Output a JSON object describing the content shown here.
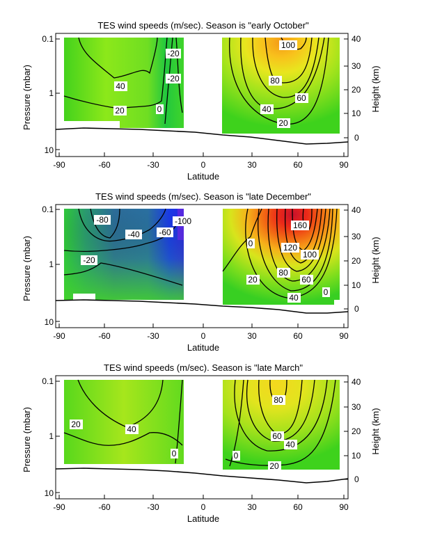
{
  "chart_data": [
    {
      "type": "heatmap",
      "title": "TES wind speeds (m/sec). Season is \"early October\"",
      "xlabel": "Latitude",
      "ylabel": "Pressure (mbar)",
      "ylabel_right": "Height (km)",
      "xlim": [
        -95,
        95
      ],
      "xticks": [
        "-90",
        "-60",
        "-30",
        "0",
        "30",
        "60",
        "90"
      ],
      "yscale": "log",
      "ylim_pressure_mbar": [
        0.1,
        12
      ],
      "yticks_left": [
        "0.1",
        "1",
        "10"
      ],
      "yticks_right": [
        "0",
        "10",
        "20",
        "30",
        "40"
      ],
      "colorscale": "blue(-100) – green(0) – yellow – orange – red – purple(160)",
      "regions": [
        {
          "lat": [
            -87,
            -17
          ],
          "p_top": 0.1,
          "p_bottom": 3.5
        },
        {
          "lat": [
            12,
            89
          ],
          "p_top": 0.1,
          "p_bottom": 5.0
        }
      ],
      "contours": [
        {
          "level": 20,
          "label": "20"
        },
        {
          "level": 40,
          "label": "40"
        },
        {
          "level": -20,
          "label": "-20"
        },
        {
          "level": -20,
          "label": "-20"
        },
        {
          "level": 0,
          "label": "0"
        },
        {
          "level": 100,
          "label": "100"
        },
        {
          "level": 80,
          "label": "80"
        },
        {
          "level": 60,
          "label": "60"
        },
        {
          "level": 40,
          "label": "40"
        },
        {
          "level": 20,
          "label": "20"
        }
      ],
      "surface_line": "surface pressure",
      "max_value": 100
    },
    {
      "type": "heatmap",
      "title": "TES wind speeds (m/sec). Season is \"late December\"",
      "xlabel": "Latitude",
      "ylabel": "Pressure (mbar)",
      "ylabel_right": "Height (km)",
      "xlim": [
        -95,
        95
      ],
      "xticks": [
        "-90",
        "-60",
        "-30",
        "0",
        "30",
        "60",
        "90"
      ],
      "yscale": "log",
      "ylim_pressure_mbar": [
        0.1,
        12
      ],
      "yticks_left": [
        "0.1",
        "1",
        "10"
      ],
      "yticks_right": [
        "0",
        "10",
        "20",
        "30",
        "40"
      ],
      "colorscale": "blue(-100) – green(0) – yellow – orange – red – purple(160)",
      "regions": [
        {
          "lat": [
            -87,
            -15
          ],
          "p_top": 0.1,
          "p_bottom": 3.5
        },
        {
          "lat": [
            13,
            89
          ],
          "p_top": 0.1,
          "p_bottom": 5.0
        }
      ],
      "contours": [
        {
          "level": -80,
          "label": "-80"
        },
        {
          "level": -40,
          "label": "-40"
        },
        {
          "level": -60,
          "label": "-60"
        },
        {
          "level": -100,
          "label": "-100"
        },
        {
          "level": -20,
          "label": "-20"
        },
        {
          "level": 0,
          "label": "0"
        },
        {
          "level": 160,
          "label": "160"
        },
        {
          "level": 120,
          "label": "120"
        },
        {
          "level": 100,
          "label": "100"
        },
        {
          "level": 80,
          "label": "80"
        },
        {
          "level": 60,
          "label": "60"
        },
        {
          "level": 20,
          "label": "20"
        },
        {
          "level": 40,
          "label": "40"
        },
        {
          "level": 0,
          "label": "0"
        }
      ],
      "surface_line": "surface pressure",
      "max_value": 160,
      "min_value": -100
    },
    {
      "type": "heatmap",
      "title": "TES wind speeds (m/sec). Season is \"late March\"",
      "xlabel": "Latitude",
      "ylabel": "Pressure (mbar)",
      "ylabel_right": "Height (km)",
      "xlim": [
        -95,
        95
      ],
      "xticks": [
        "-90",
        "-60",
        "-30",
        "0",
        "30",
        "60",
        "90"
      ],
      "yscale": "log",
      "ylim_pressure_mbar": [
        0.1,
        12
      ],
      "yticks_left": [
        "0.1",
        "1",
        "10"
      ],
      "yticks_right": [
        "0",
        "10",
        "20",
        "30",
        "40"
      ],
      "colorscale": "blue(-100) – green(0) – yellow – orange – red – purple(160)",
      "regions": [
        {
          "lat": [
            -87,
            -15
          ],
          "p_top": 0.1,
          "p_bottom": 3.5
        },
        {
          "lat": [
            13,
            89
          ],
          "p_top": 0.1,
          "p_bottom": 5.0
        }
      ],
      "contours": [
        {
          "level": 20,
          "label": "20"
        },
        {
          "level": 40,
          "label": "40"
        },
        {
          "level": 0,
          "label": "0"
        },
        {
          "level": 80,
          "label": "80"
        },
        {
          "level": 60,
          "label": "60"
        },
        {
          "level": 40,
          "label": "40"
        },
        {
          "level": 0,
          "label": "0"
        },
        {
          "level": 20,
          "label": "20"
        }
      ],
      "surface_line": "surface pressure",
      "max_value": 90
    }
  ]
}
